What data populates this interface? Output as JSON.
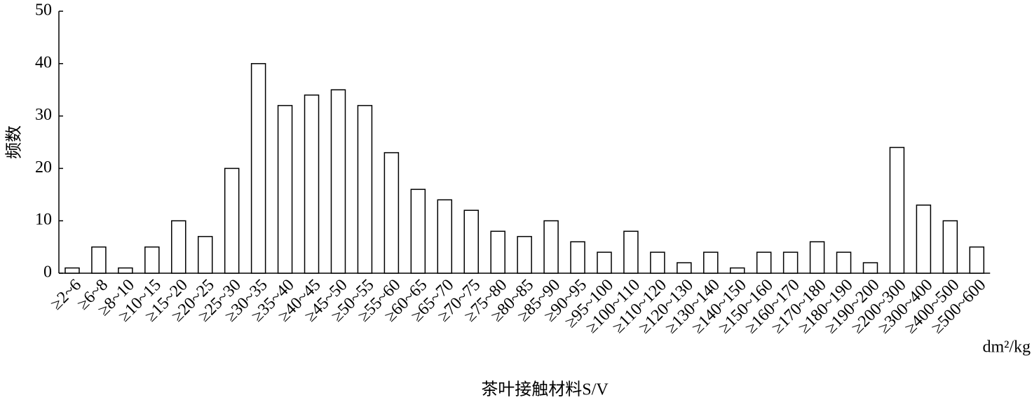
{
  "chart_data": {
    "type": "bar",
    "y_label": "频数",
    "x_label": "茶叶接触材料S/V",
    "x_unit": "dm²/kg",
    "categories": [
      "≥2~6",
      "≥6~8",
      "≥8~10",
      "≥10~15",
      "≥15~20",
      "≥20~25",
      "≥25~30",
      "≥30~35",
      "≥35~40",
      "≥40~45",
      "≥45~50",
      "≥50~55",
      "≥55~60",
      "≥60~65",
      "≥65~70",
      "≥70~75",
      "≥75~80",
      "≥80~85",
      "≥85~90",
      "≥90~95",
      "≥95~100",
      "≥100~110",
      "≥110~120",
      "≥120~130",
      "≥130~140",
      "≥140~150",
      "≥150~160",
      "≥160~170",
      "≥170~180",
      "≥180~190",
      "≥190~200",
      "≥200~300",
      "≥300~400",
      "≥400~500",
      "≥500~600"
    ],
    "values": [
      1,
      5,
      1,
      5,
      10,
      7,
      20,
      40,
      32,
      34,
      35,
      32,
      23,
      16,
      14,
      12,
      8,
      7,
      10,
      6,
      4,
      8,
      4,
      2,
      4,
      1,
      4,
      4,
      6,
      4,
      2,
      24,
      13,
      10,
      5
    ],
    "color": "#ffffff",
    "ylim": [
      0,
      50
    ],
    "yticks": [
      0,
      10,
      20,
      30,
      40,
      50
    ],
    "grid": false
  }
}
